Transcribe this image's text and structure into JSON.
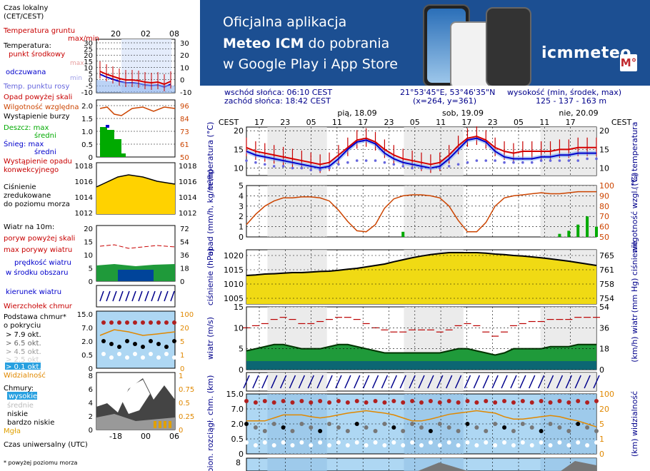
{
  "banner": {
    "line1": "Oficjalna aplikacja",
    "line2_bold": "Meteo ICM",
    "line2_rest": " do pobrania",
    "line3": "w Google Play i App Store",
    "logo": "icmmeteo",
    "logo_badge": "M°"
  },
  "info": {
    "sunrise": "wschód słońca: 06:10 CEST",
    "sunset": "zachód słońca: 18:42 CEST",
    "coords": "21°53'45\"E, 53°46'35\"N",
    "grid": "(x=264,  y=361)",
    "elev_label": "wysokość (min, środek, max)",
    "elev_values": "125 - 137 - 163 m"
  },
  "legend": {
    "czas_lokalny": "Czas lokalny",
    "cet_cest": "(CET/CEST)",
    "hours_top": [
      "20",
      "02",
      "08"
    ],
    "temp_ticks": [
      "30",
      "25",
      "20",
      "15",
      "10",
      "5",
      "0",
      "-5",
      "-10"
    ],
    "temp_ticks_right": [
      "30",
      "20",
      "10",
      "0",
      "-10"
    ],
    "temperatura_gruntu": "Temperatura gruntu",
    "max_min": "max/min",
    "temperatura": "Temperatura:",
    "punkt_srodkowy": "punkt środkowy",
    "max": "max",
    "min": "min",
    "odczuwana": "odczuwana",
    "temp_punktu_rosy": "Temp. punktu rosy",
    "opad_powyzej": "Opad powyżej skali",
    "wilgotnosc": "Wilgotność względna",
    "wystapienie_burzy": "Wystąpienie burzy",
    "deszcz_max": "Deszcz: max",
    "sredni": "średni",
    "snieg_max": "Śnieg:      max",
    "sredni2": "średni",
    "wystapienie_opadu": "Wystąpienie opadu",
    "konwekcyjnego": "konwekcyjnego",
    "precip_ticks": [
      "2.0",
      "1.5",
      "1.0",
      "0.5",
      "0"
    ],
    "hum_ticks": [
      "96",
      "84",
      "73",
      "61",
      "50"
    ],
    "press_ticks": [
      "1018",
      "1016",
      "1014",
      "1012"
    ],
    "cisnienie": "Ciśnienie",
    "zredukowane": "zredukowane",
    "do_poziomu_morza": "do poziomu morza",
    "wiatr_na": "Wiatr na 10m:",
    "poryw_powyzej": "poryw powyżej skali",
    "max_porywy": "max porywy wiatru",
    "predkosc_wiatru": "prędkość wiatru",
    "w_srodku": "w środku obszaru",
    "wind_ticks": [
      "20",
      "15",
      "10",
      "5",
      "0"
    ],
    "wind_ticks_r": [
      "72",
      "54",
      "36",
      "18",
      "0"
    ],
    "kierunek_wiatru": "kierunek wiatru",
    "wierzcholek": "Wierzchołek chmur",
    "podstawa": "Podstawa chmur*",
    "o_pokryciu": "o pokryciu",
    "okt79": "> 7.9 okt.",
    "okt65": "> 6.5 okt.",
    "okt45": "> 4.5 okt.",
    "okt25": "> 2.5 okt.",
    "okt01": "> 0.1 okt.",
    "widzialnosc": "Widzialność",
    "cloud_ticks": [
      "15.0",
      "7.0",
      "2.0",
      "0.5",
      "0"
    ],
    "vis_ticks": [
      "100",
      "20",
      "5",
      "1",
      "0"
    ],
    "chmury": "Chmury:",
    "wysokie": "wysokie",
    "srednie": "średnie",
    "niskie": "niskie",
    "bardzo_niskie": "bardzo niskie",
    "mgla": "Mgła",
    "cl_ticks": [
      "8",
      "6",
      "4",
      "2",
      "0"
    ],
    "cl_ticks_r": [
      "1",
      "0.75",
      "0.5",
      "0.25",
      "0"
    ],
    "hours_bottom": [
      "18",
      "00",
      "06"
    ],
    "czas_uniwersalny": "Czas uniwersalny (UTC)",
    "footnote": "* powyżej poziomu morza"
  },
  "chart_data": {
    "type": "line",
    "time_axis_local": [
      "17",
      "23",
      "05",
      "11",
      "17",
      "23",
      "05",
      "11",
      "17",
      "23",
      "05",
      "11",
      "17"
    ],
    "time_zone_label": "CEST",
    "days": [
      "pią, 18.09",
      "sob, 19.09",
      "nie, 20.09"
    ],
    "panels": [
      {
        "name": "temperature",
        "ylabel": "temperatura (°C)",
        "ylim": [
          8,
          21
        ],
        "yticks": [
          10,
          15,
          20
        ],
        "series": [
          {
            "name": "temperatura",
            "color": "#d40000",
            "values": [
              15.5,
              14.5,
              14.0,
              13.5,
              13.0,
              12.5,
              12.0,
              11.5,
              11.0,
              11.5,
              13.5,
              15.5,
              17.5,
              18.0,
              17.0,
              15.0,
              13.5,
              12.5,
              12.0,
              11.5,
              11.0,
              11.5,
              13.5,
              16.0,
              18.0,
              18.5,
              17.5,
              15.5,
              14.5,
              14.0,
              14.5,
              14.5,
              14.5,
              14.5,
              15.0,
              15.0,
              15.5,
              15.5,
              15.5
            ]
          },
          {
            "name": "odczuwana",
            "color": "#0000cc",
            "values": [
              14.5,
              13.5,
              13.0,
              12.5,
              12.0,
              11.5,
              11.0,
              10.5,
              10.0,
              10.5,
              12.5,
              15.0,
              17.0,
              17.5,
              16.5,
              14.0,
              12.5,
              11.5,
              11.0,
              10.5,
              10.0,
              10.5,
              12.5,
              15.0,
              17.5,
              18.0,
              17.0,
              14.5,
              13.0,
              12.5,
              12.5,
              12.5,
              13.0,
              13.0,
              13.5,
              13.5,
              14.0,
              14.0,
              14.0
            ]
          },
          {
            "name": "punkt rosy",
            "color": "#6666dd",
            "values": [
              12.0,
              11.5,
              11.0,
              10.5,
              10.5,
              10.0,
              10.0,
              9.5,
              9.5,
              10.0,
              11.0,
              11.5,
              12.0,
              12.0,
              12.0,
              11.5,
              11.0,
              10.5,
              10.0,
              10.0,
              10.0,
              10.0,
              10.5,
              11.0,
              11.5,
              12.0,
              12.0,
              12.0,
              11.5,
              11.5,
              11.5,
              11.5,
              12.0,
              12.0,
              12.0,
              12.0,
              12.0,
              12.5,
              12.5
            ]
          }
        ]
      },
      {
        "name": "precipitation",
        "ylabel": "opad (mm/h, kg/m²/h)",
        "ylabel_right": "wilgotność wzgl. (%)",
        "ylim": [
          0,
          5
        ],
        "yticks": [
          0,
          1,
          2,
          3,
          4,
          5
        ],
        "ylim_right": [
          50,
          100
        ],
        "yticks_right": [
          50,
          60,
          70,
          80,
          90,
          100
        ],
        "series": [
          {
            "name": "wilgotność względna",
            "color": "#cc4400",
            "values": [
              62,
              72,
              80,
              85,
              88,
              88,
              89,
              89,
              88,
              85,
              76,
              65,
              56,
              55,
              62,
              78,
              87,
              90,
              91,
              91,
              90,
              88,
              80,
              66,
              55,
              55,
              64,
              80,
              88,
              90,
              91,
              92,
              93,
              92,
              92,
              93,
              94,
              94,
              94
            ]
          },
          {
            "name": "opad",
            "color": "#00aa00",
            "values": [
              0,
              0,
              0,
              0,
              0,
              0,
              0,
              0,
              0,
              0,
              0,
              0,
              0,
              0,
              0,
              0,
              0,
              0.5,
              0,
              0,
              0,
              0,
              0,
              0,
              0,
              0,
              0,
              0,
              0,
              0,
              0,
              0,
              0,
              0,
              0.3,
              0.6,
              1.2,
              2.0,
              1.0
            ]
          }
        ]
      },
      {
        "name": "pressure",
        "ylabel": "ciśnienie (hPa)",
        "ylabel_right": "(mm Hg) ciśnienie",
        "ylim": [
          1003,
          1022
        ],
        "yticks": [
          1005,
          1010,
          1015,
          1020
        ],
        "yticks_right": [
          "754",
          "758",
          "761",
          "765"
        ],
        "series": [
          {
            "name": "ciśnienie",
            "color": "#000000",
            "values": [
              1013.0,
              1013.2,
              1013.5,
              1013.6,
              1013.8,
              1014.0,
              1014.0,
              1014.2,
              1014.4,
              1014.5,
              1014.8,
              1015.2,
              1015.5,
              1016.0,
              1016.5,
              1017.0,
              1017.8,
              1018.5,
              1019.2,
              1019.8,
              1020.3,
              1020.7,
              1021.0,
              1021.0,
              1021.0,
              1021.0,
              1020.8,
              1020.5,
              1020.3,
              1020.0,
              1019.8,
              1019.5,
              1019.2,
              1018.8,
              1018.4,
              1018.0,
              1017.5,
              1017.0,
              1016.5
            ]
          }
        ]
      },
      {
        "name": "wind",
        "ylabel": "wiatr (m/s)",
        "ylabel_right": "(km/h) wiatr",
        "ylim": [
          0,
          15
        ],
        "yticks": [
          0,
          5,
          10,
          15
        ],
        "yticks_right": [
          "0",
          "18",
          "36",
          "54"
        ],
        "series": [
          {
            "name": "prędkość wiatru",
            "color": "#003300",
            "values": [
              4.5,
              5.0,
              5.5,
              6.0,
              6.0,
              5.5,
              5.0,
              5.0,
              5.0,
              5.5,
              6.0,
              6.0,
              5.5,
              5.0,
              4.5,
              4.0,
              4.0,
              4.0,
              4.0,
              4.0,
              4.0,
              4.0,
              4.5,
              5.0,
              5.0,
              4.5,
              4.0,
              3.5,
              4.0,
              5.0,
              5.0,
              5.0,
              5.0,
              5.5,
              5.5,
              5.5,
              6.0,
              6.0,
              6.0
            ]
          },
          {
            "name": "max porywy",
            "color": "#bb0000",
            "values": [
              10.0,
              10.5,
              11.0,
              12.0,
              12.5,
              12.0,
              11.0,
              11.0,
              11.5,
              12.0,
              12.5,
              12.5,
              12.0,
              11.0,
              10.0,
              9.5,
              9.0,
              9.0,
              9.5,
              9.5,
              9.5,
              9.0,
              9.5,
              10.5,
              11.0,
              10.5,
              9.0,
              8.0,
              9.0,
              10.5,
              11.0,
              11.5,
              11.5,
              12.0,
              12.0,
              12.0,
              12.5,
              12.5,
              12.5
            ]
          }
        ]
      },
      {
        "name": "cloud_base",
        "ylabel": "pion. rozciągł. chm. (km)",
        "ylabel_right": "widzialność",
        "yticks": [
          "0",
          "0.5",
          "2.0",
          "7.0",
          "15.0"
        ],
        "yticks_right": [
          "0",
          "1",
          "5",
          "20",
          "100"
        ],
        "series": [
          {
            "name": "widzialność",
            "color": "#e08800",
            "values": [
              0.55,
              0.55,
              0.55,
              0.6,
              0.65,
              0.65,
              0.65,
              0.62,
              0.6,
              0.62,
              0.65,
              0.68,
              0.7,
              0.72,
              0.7,
              0.68,
              0.65,
              0.6,
              0.55,
              0.55,
              0.58,
              0.62,
              0.66,
              0.68,
              0.7,
              0.72,
              0.7,
              0.68,
              0.62,
              0.58,
              0.58,
              0.6,
              0.62,
              0.64,
              0.62,
              0.58,
              0.55,
              0.5,
              0.45
            ]
          }
        ]
      }
    ],
    "grid": true
  },
  "colors": {
    "axis": "#000000",
    "label_blue": "#00008b",
    "temp_red": "#d40000",
    "feel_blue": "#0000cc",
    "dew": "#6666dd",
    "humidity": "#cc4400",
    "rain": "#00aa00",
    "press_fill": "#ffd200",
    "press_fill2": "#ccee44",
    "wind_fill": "#1f9a3a",
    "wind_fill2": "#00449a",
    "night": "#e6e6e6",
    "sky": "#aed7f3"
  }
}
